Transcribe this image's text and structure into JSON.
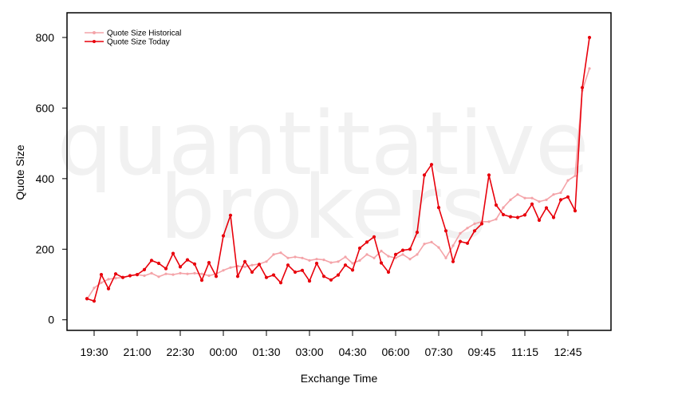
{
  "chart_data": {
    "type": "line",
    "watermark": [
      "quantitative",
      "brokers"
    ],
    "xlabel": "Exchange Time",
    "ylabel": "Quote Size",
    "ylim": [
      -30,
      870
    ],
    "y_ticks": [
      0,
      200,
      400,
      600,
      800
    ],
    "x_tick_labels": [
      "19:30",
      "21:00",
      "22:30",
      "00:00",
      "01:30",
      "03:00",
      "04:30",
      "06:00",
      "07:30",
      "09:45",
      "11:15",
      "12:45"
    ],
    "x_tick_index": [
      1,
      7,
      13,
      19,
      25,
      31,
      37,
      43,
      49,
      55,
      61,
      67
    ],
    "legend_position": "top-left",
    "series": [
      {
        "name": "Quote Size Historical",
        "color": "#f4a3a8",
        "values": [
          58,
          90,
          105,
          115,
          118,
          120,
          125,
          128,
          125,
          132,
          122,
          130,
          128,
          132,
          130,
          132,
          130,
          125,
          130,
          140,
          148,
          152,
          150,
          155,
          158,
          165,
          185,
          190,
          175,
          178,
          175,
          168,
          172,
          170,
          162,
          165,
          178,
          160,
          168,
          185,
          175,
          195,
          180,
          175,
          185,
          172,
          185,
          215,
          220,
          205,
          175,
          210,
          245,
          260,
          272,
          278,
          278,
          285,
          318,
          340,
          355,
          345,
          345,
          335,
          340,
          355,
          360,
          395,
          408,
          650,
          712
        ]
      },
      {
        "name": "Quote Size Today",
        "color": "#e8000b",
        "values": [
          60,
          53,
          128,
          88,
          130,
          120,
          125,
          128,
          142,
          168,
          160,
          145,
          188,
          150,
          170,
          158,
          112,
          162,
          123,
          238,
          296,
          123,
          165,
          135,
          157,
          120,
          127,
          105,
          155,
          135,
          140,
          110,
          160,
          123,
          113,
          127,
          155,
          141,
          203,
          220,
          235,
          161,
          135,
          185,
          197,
          200,
          248,
          410,
          440,
          318,
          252,
          165,
          222,
          217,
          252,
          272,
          410,
          325,
          298,
          292,
          290,
          297,
          328,
          282,
          317,
          290,
          340,
          348,
          309,
          658,
          800
        ]
      }
    ]
  }
}
